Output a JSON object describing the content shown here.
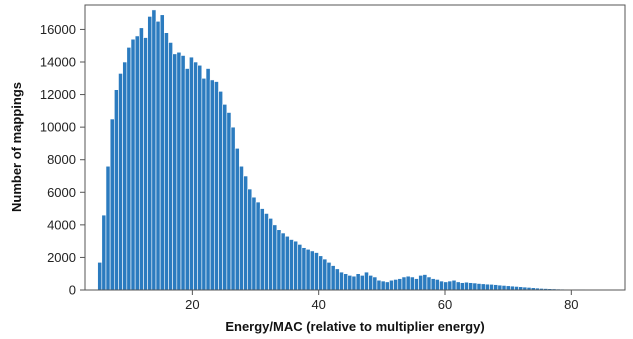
{
  "chart_data": {
    "type": "bar",
    "title": "",
    "xlabel": "Energy/MAC (relative to multiplier energy)",
    "ylabel": "Number of mappings",
    "xlim": [
      3,
      88.5
    ],
    "ylim": [
      0,
      17500
    ],
    "xticks": [
      20,
      40,
      60,
      80
    ],
    "yticks": [
      0,
      2000,
      4000,
      6000,
      8000,
      10000,
      12000,
      14000,
      16000
    ],
    "tick_labels_x": [
      "20",
      "40",
      "60",
      "80"
    ],
    "tick_labels_y": [
      "0",
      "2000",
      "4000",
      "6000",
      "8000",
      "10000",
      "12000",
      "14000",
      "16000"
    ],
    "bin_width": 0.66,
    "grid": false,
    "legend": "none",
    "bar_color": "#2b7bbf",
    "bar_edge_color": "#ffffff",
    "x": [
      5.0,
      5.66,
      6.32,
      6.98,
      7.64,
      8.3,
      8.96,
      9.62,
      10.28,
      10.94,
      11.6,
      12.26,
      12.92,
      13.58,
      14.24,
      14.9,
      15.56,
      16.22,
      16.88,
      17.54,
      18.2,
      18.86,
      19.52,
      20.18,
      20.84,
      21.5,
      22.16,
      22.82,
      23.48,
      24.14,
      24.8,
      25.46,
      26.12,
      26.78,
      27.44,
      28.1,
      28.76,
      29.42,
      30.08,
      30.74,
      31.4,
      32.06,
      32.72,
      33.38,
      34.04,
      34.7,
      35.36,
      36.02,
      36.68,
      37.34,
      38.0,
      38.66,
      39.32,
      39.98,
      40.64,
      41.3,
      41.96,
      42.62,
      43.28,
      43.94,
      44.6,
      45.26,
      45.92,
      46.58,
      47.24,
      47.9,
      48.56,
      49.22,
      49.88,
      50.54,
      51.2,
      51.86,
      52.52,
      53.18,
      53.84,
      54.5,
      55.16,
      55.82,
      56.48,
      57.14,
      57.8,
      58.46,
      59.12,
      59.78,
      60.44,
      61.1,
      61.76,
      62.42,
      63.08,
      63.74,
      64.4,
      65.06,
      65.72,
      66.38,
      67.04,
      67.7,
      68.36,
      69.02,
      69.68,
      70.34,
      71.0,
      71.66,
      72.32,
      72.98,
      73.64,
      74.3,
      74.96,
      75.62,
      76.28,
      76.94,
      77.6,
      78.26,
      78.92,
      79.58,
      80.24,
      80.9,
      81.56,
      82.22,
      82.88,
      83.54,
      84.2,
      84.86,
      85.52,
      86.18,
      86.84
    ],
    "values": [
      1700,
      4600,
      7600,
      10500,
      12300,
      13300,
      14000,
      14900,
      15400,
      15600,
      16100,
      15500,
      16800,
      17200,
      16500,
      16900,
      15800,
      15200,
      14500,
      14600,
      14400,
      13600,
      14300,
      14000,
      13800,
      13000,
      13600,
      12900,
      12800,
      12200,
      11400,
      10900,
      10000,
      8700,
      7600,
      7000,
      6200,
      5700,
      5400,
      5000,
      4700,
      4400,
      4000,
      3700,
      3500,
      3300,
      3100,
      3000,
      2800,
      2600,
      2500,
      2400,
      2300,
      2100,
      1900,
      1700,
      1500,
      1300,
      1100,
      1000,
      900,
      850,
      1000,
      900,
      1100,
      900,
      800,
      600,
      550,
      500,
      600,
      650,
      700,
      800,
      850,
      800,
      700,
      900,
      950,
      800,
      700,
      650,
      550,
      500,
      550,
      600,
      500,
      450,
      480,
      450,
      430,
      400,
      380,
      360,
      350,
      330,
      300,
      280,
      260,
      240,
      220,
      200,
      180,
      160,
      140,
      120,
      100,
      90,
      80,
      70,
      60,
      55,
      50,
      45,
      40,
      40,
      35,
      30,
      30,
      30,
      25,
      20,
      20,
      15,
      15
    ]
  }
}
